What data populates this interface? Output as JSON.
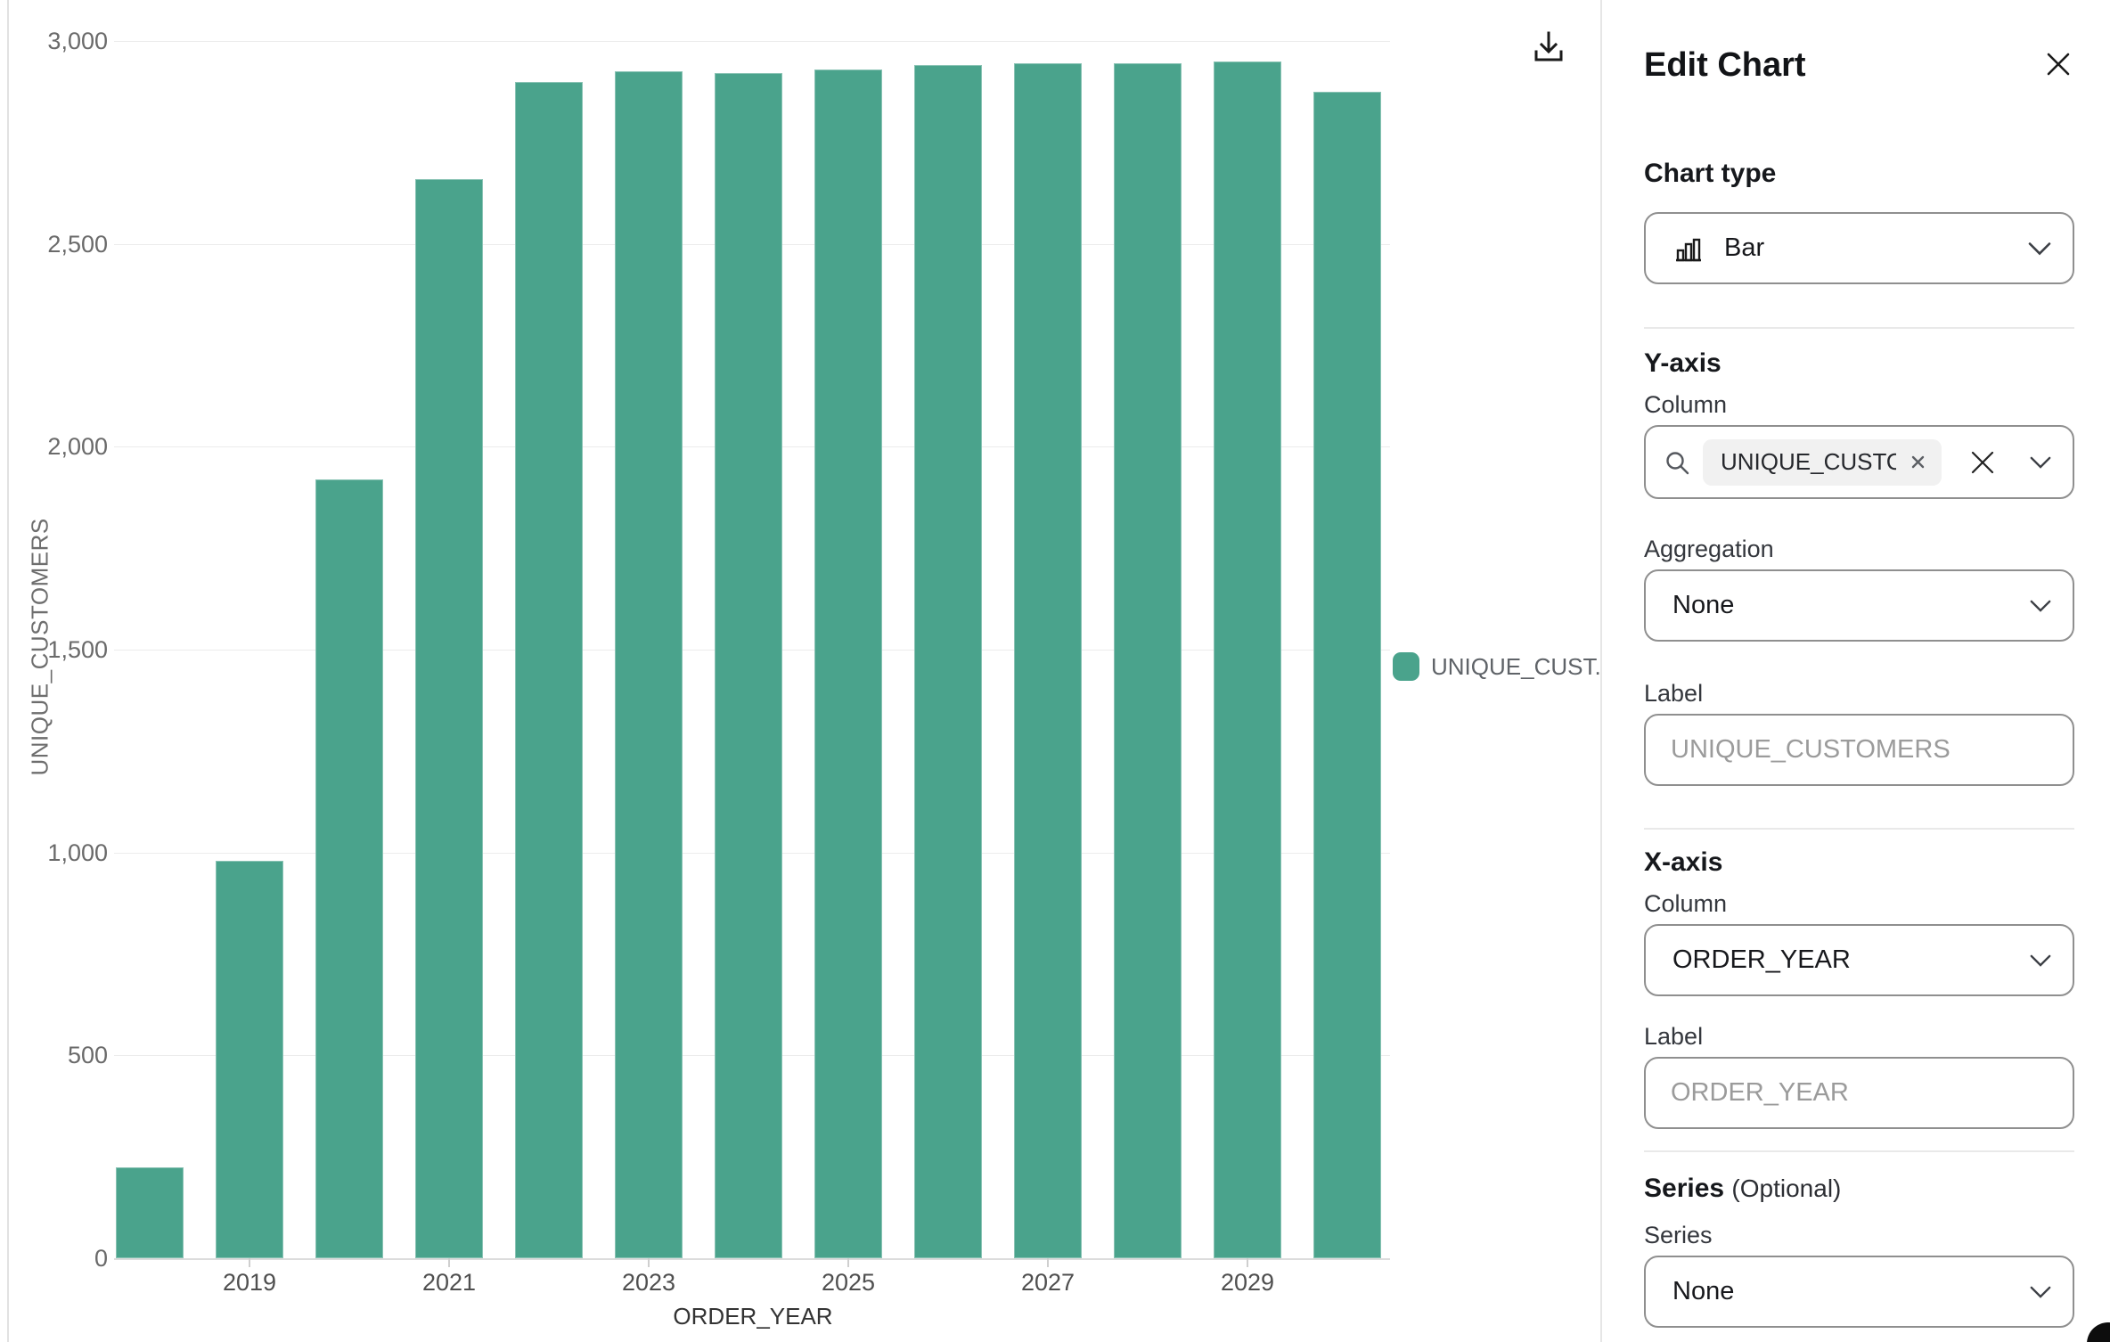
{
  "chart_data": {
    "type": "bar",
    "categories": [
      "2018",
      "2019",
      "2020",
      "2021",
      "2022",
      "2023",
      "2024",
      "2025",
      "2026",
      "2027",
      "2028",
      "2029",
      "2030"
    ],
    "values": [
      225,
      980,
      1920,
      2660,
      2900,
      2925,
      2920,
      2930,
      2940,
      2945,
      2945,
      2950,
      2875
    ],
    "title": "",
    "xlabel": "ORDER_YEAR",
    "ylabel": "UNIQUE_CUSTOMERS",
    "ylim": [
      0,
      3000
    ],
    "yticks": [
      0,
      500,
      1000,
      1500,
      2000,
      2500,
      3000
    ],
    "ytick_labels": [
      "0",
      "500",
      "1,000",
      "1,500",
      "2,000",
      "2,500",
      "3,000"
    ],
    "xtick_labels_shown": [
      "2019",
      "2021",
      "2023",
      "2025",
      "2027",
      "2029"
    ],
    "grid": "horizontal-only",
    "bar_color": "#4AA38C",
    "legend": {
      "position": "right",
      "label": "UNIQUE_CUST..."
    }
  },
  "chart_toolbar": {
    "download_icon": "download-icon"
  },
  "panel": {
    "title": "Edit Chart",
    "chart_type": {
      "heading": "Chart type",
      "value": "Bar"
    },
    "y_axis": {
      "heading": "Y-axis",
      "column_label": "Column",
      "column_chip": "UNIQUE_CUSTO...",
      "aggregation_label": "Aggregation",
      "aggregation_value": "None",
      "label_label": "Label",
      "label_placeholder": "UNIQUE_CUSTOMERS",
      "label_value": ""
    },
    "x_axis": {
      "heading": "X-axis",
      "column_label": "Column",
      "column_value": "ORDER_YEAR",
      "label_label": "Label",
      "label_placeholder": "ORDER_YEAR",
      "label_value": ""
    },
    "series": {
      "heading": "Series",
      "optional_suffix": "(Optional)",
      "series_label": "Series",
      "series_value": "None"
    }
  },
  "colors": {
    "accent_teal": "#4AA38C",
    "grid_line": "#ececec",
    "axis_line": "#dcdcdc",
    "text_dark": "#16181c",
    "text_gray": "#6a6a6a",
    "placeholder_gray": "#9b9b9b",
    "input_border": "#8f8f8f"
  }
}
